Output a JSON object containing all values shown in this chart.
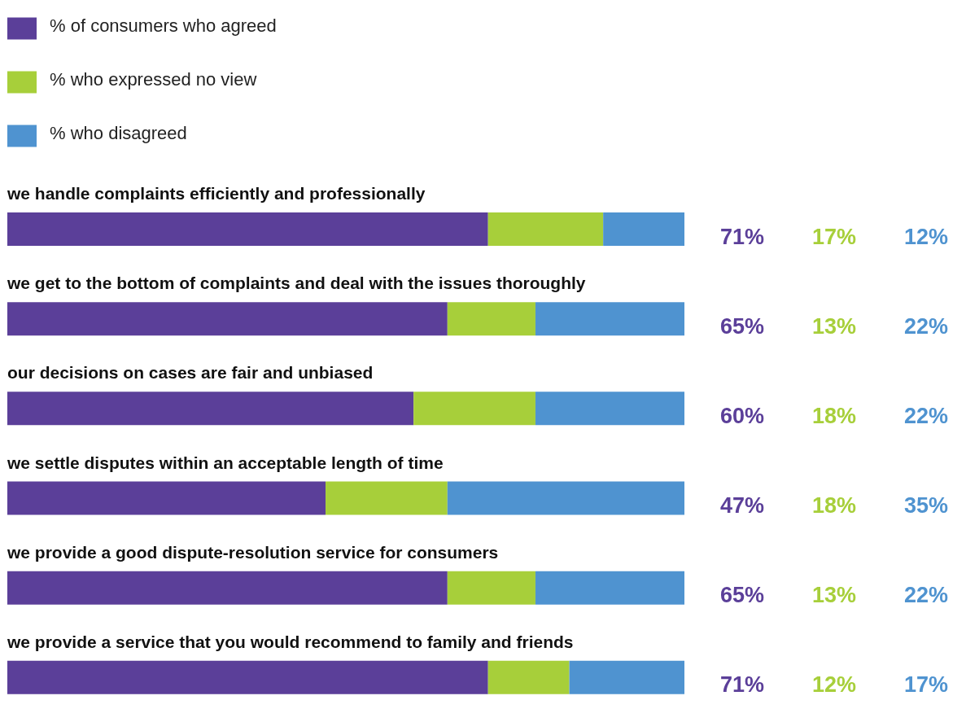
{
  "chart_data": {
    "type": "bar",
    "orientation": "horizontal",
    "stacked": true,
    "categories": [
      "we handle complaints efficiently and professionally",
      "we get to the bottom of complaints and deal with the issues thoroughly",
      "our decisions on cases are fair and unbiased",
      "we settle disputes within an acceptable length of time",
      "we provide a good dispute-resolution service for consumers",
      "we provide a service that you would recommend to family and friends"
    ],
    "series": [
      {
        "name": "% of consumers who agreed",
        "color": "#5b3f99",
        "values": [
          71,
          65,
          60,
          47,
          65,
          71
        ],
        "value_labels": [
          "71%",
          "65%",
          "60%",
          "47%",
          "65%",
          "71%"
        ]
      },
      {
        "name": "% who expressed no view",
        "color": "#a7cf3a",
        "values": [
          17,
          13,
          18,
          18,
          13,
          12
        ],
        "value_labels": [
          "17%",
          "13%",
          "18%",
          "18%",
          "13%",
          "12%"
        ]
      },
      {
        "name": "% who disagreed",
        "color": "#4f93d0",
        "values": [
          12,
          22,
          22,
          35,
          22,
          17
        ],
        "value_labels": [
          "12%",
          "22%",
          "22%",
          "35%",
          "22%",
          "17%"
        ]
      }
    ],
    "xlim": [
      0,
      100
    ],
    "tick_labels": "y",
    "grid": false,
    "legend": "top left"
  }
}
